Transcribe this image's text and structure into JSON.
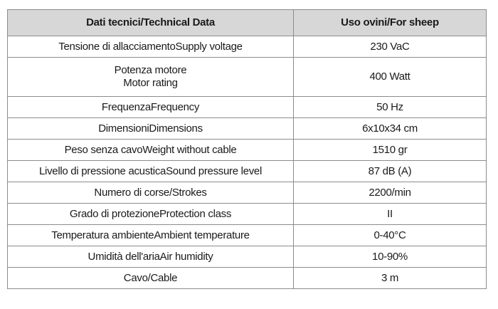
{
  "table": {
    "headers": [
      "Dati tecnici/Technical Data",
      "Uso ovini/For sheep"
    ],
    "rows": [
      {
        "label": "Tensione di allacciamentoSupply voltage",
        "value": "230 VaC"
      },
      {
        "label_lines": [
          "Potenza motore",
          "Motor rating"
        ],
        "value": "400 Watt"
      },
      {
        "label": "FrequenzaFrequency",
        "value": "50 Hz"
      },
      {
        "label": "DimensioniDimensions",
        "value": "6x10x34 cm"
      },
      {
        "label": "Peso senza cavoWeight without cable",
        "value": "1510 gr"
      },
      {
        "label": "Livello di pressione acusticaSound pressure level",
        "value": "87 dB (A)"
      },
      {
        "label": "Numero di corse/Strokes",
        "value": "2200/min"
      },
      {
        "label": "Grado di protezioneProtection class",
        "value": "II"
      },
      {
        "label": "Temperatura ambienteAmbient temperature",
        "value": "0-40°C"
      },
      {
        "label": "Umidità dell'ariaAir humidity",
        "value": "10-90%"
      },
      {
        "label": "Cavo/Cable",
        "value": "3 m"
      }
    ]
  }
}
